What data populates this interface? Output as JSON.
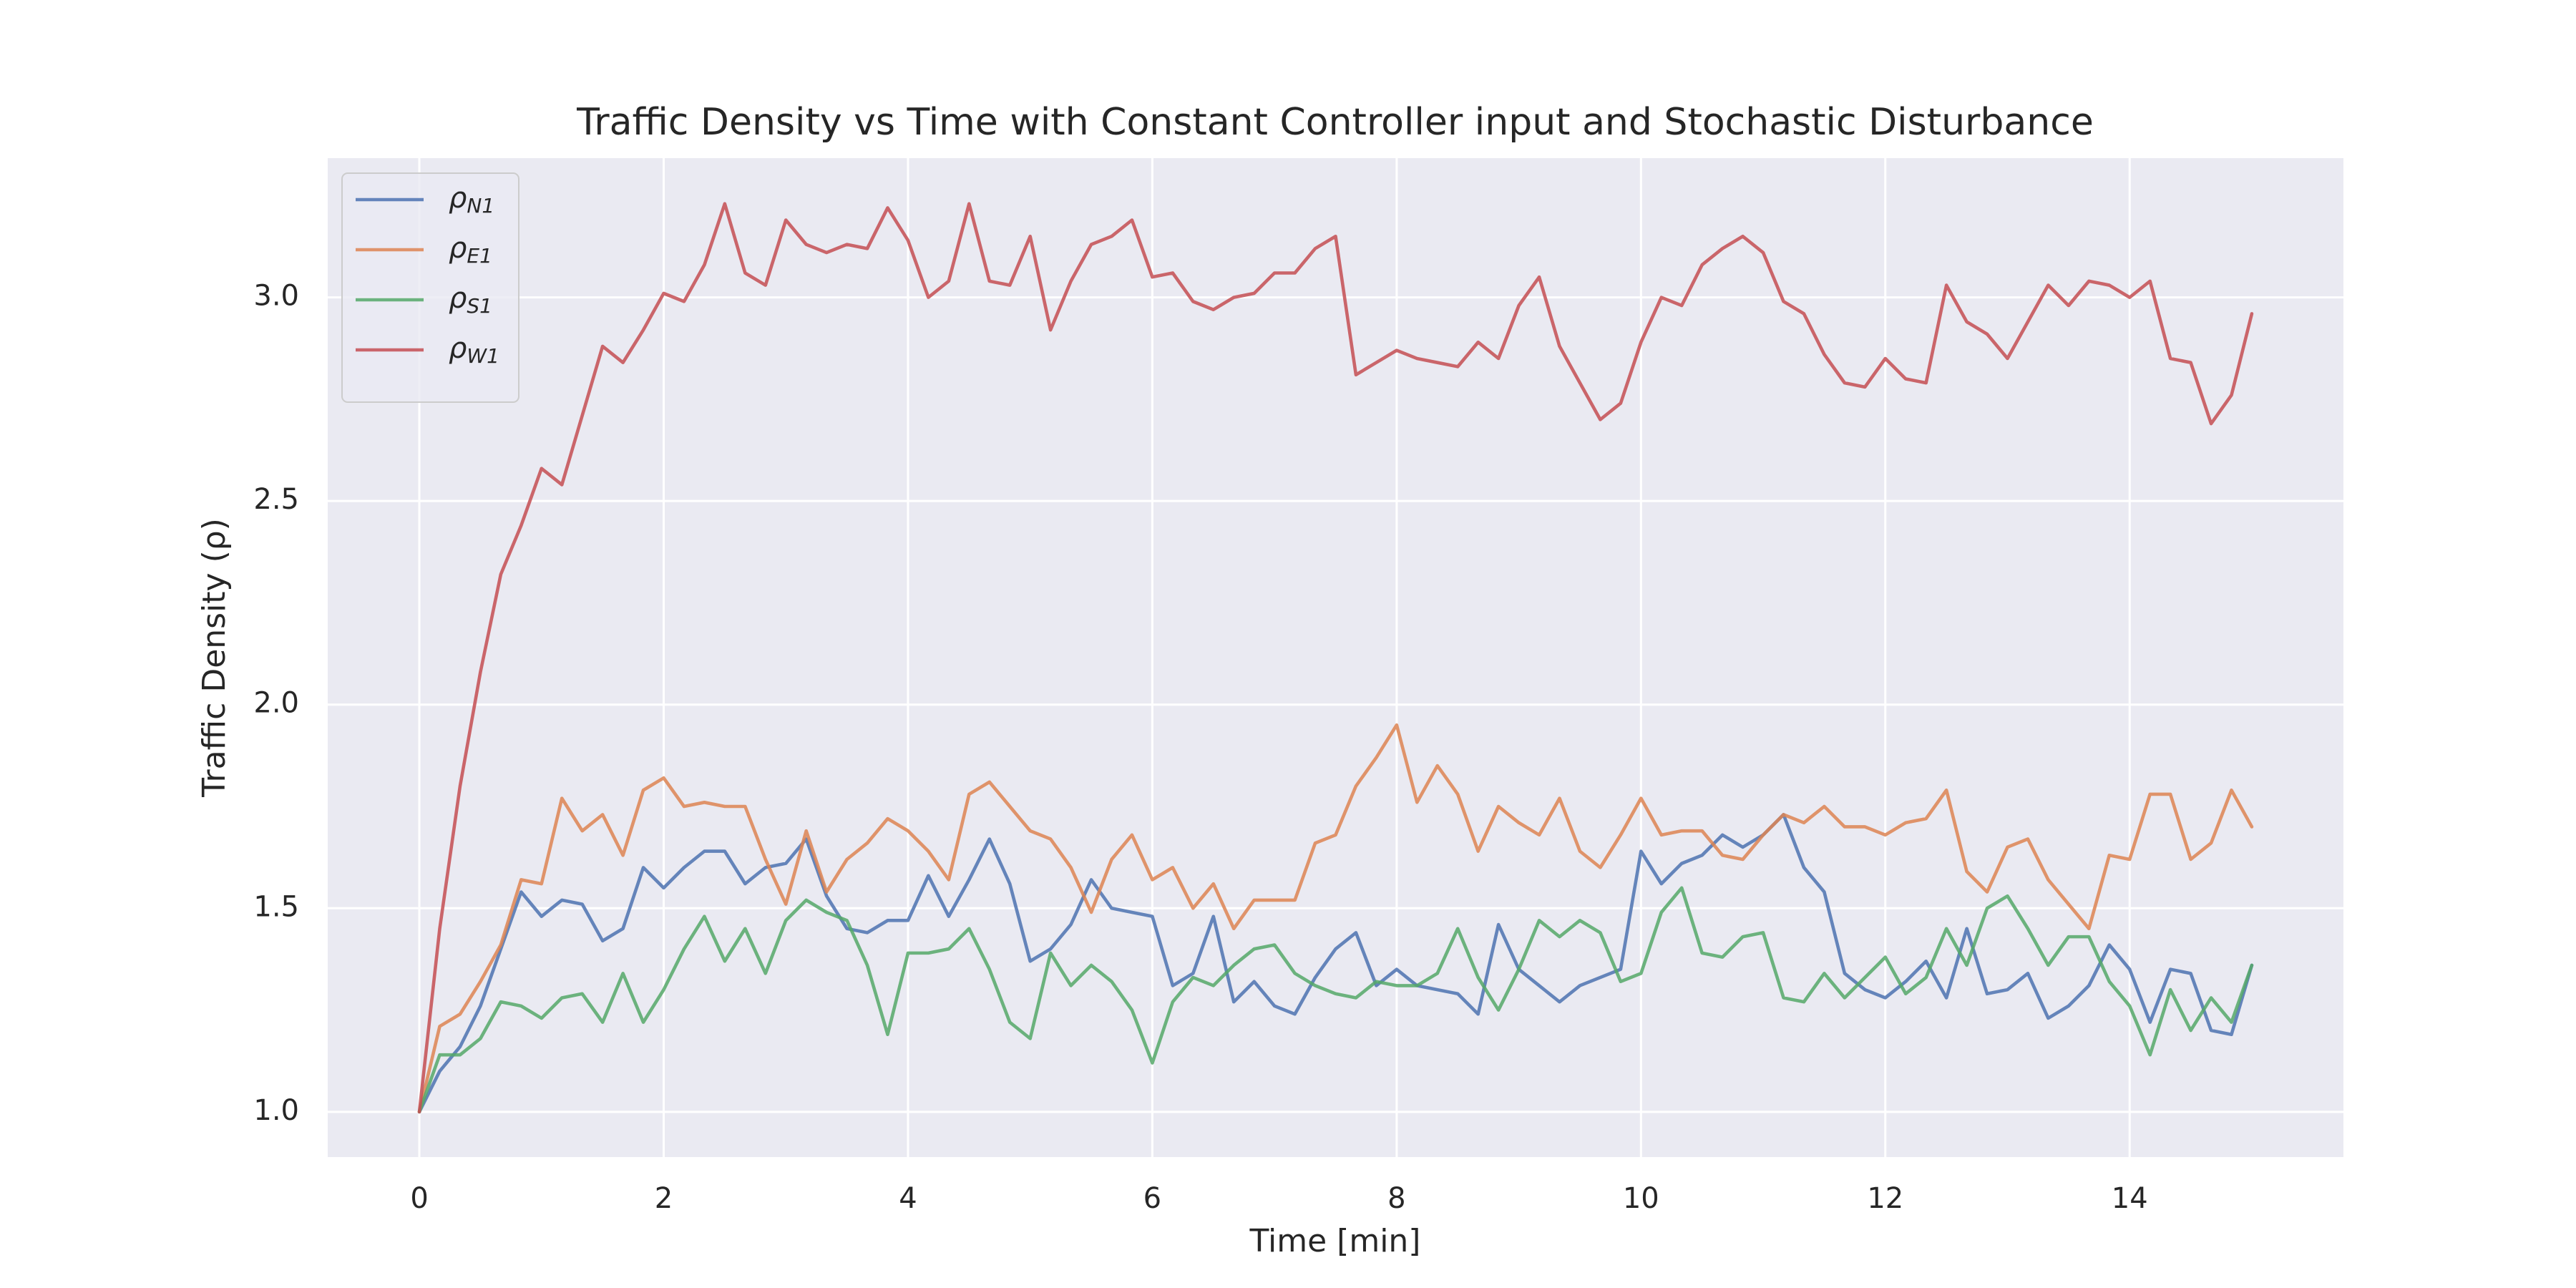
{
  "chart_data": {
    "type": "line",
    "title": "Traffic Density vs Time with Constant Controller input and Stochastic Disturbance",
    "x_label": "Time [min]",
    "y_label": "Traffic Density (ρ)",
    "x": [
      0,
      0.1667,
      0.3333,
      0.5,
      0.6667,
      0.8333,
      1,
      1.1667,
      1.3333,
      1.5,
      1.6667,
      1.8333,
      2,
      2.1667,
      2.3333,
      2.5,
      2.6667,
      2.8333,
      3,
      3.1667,
      3.3333,
      3.5,
      3.6667,
      3.8333,
      4,
      4.1667,
      4.3333,
      4.5,
      4.6667,
      4.8333,
      5,
      5.1667,
      5.3333,
      5.5,
      5.6667,
      5.8333,
      6,
      6.1667,
      6.3333,
      6.5,
      6.6667,
      6.8333,
      7,
      7.1667,
      7.3333,
      7.5,
      7.6667,
      7.8333,
      8,
      8.1667,
      8.3333,
      8.5,
      8.6667,
      8.8333,
      9,
      9.1667,
      9.3333,
      9.5,
      9.6667,
      9.8333,
      10,
      10.1667,
      10.3333,
      10.5,
      10.6667,
      10.8333,
      11,
      11.1667,
      11.3333,
      11.5,
      11.6667,
      11.8333,
      12,
      12.1667,
      12.3333,
      12.5,
      12.6667,
      12.8333,
      13,
      13.1667,
      13.3333,
      13.5,
      13.6667,
      13.8333,
      14,
      14.1667,
      14.3333,
      14.5,
      14.6667,
      14.8333,
      15
    ],
    "series": [
      {
        "name": "ρN1",
        "color": "#4c72b0",
        "values": [
          1.0,
          1.1,
          1.16,
          1.26,
          1.4,
          1.54,
          1.48,
          1.52,
          1.51,
          1.42,
          1.45,
          1.6,
          1.55,
          1.6,
          1.64,
          1.64,
          1.56,
          1.6,
          1.61,
          1.67,
          1.53,
          1.45,
          1.44,
          1.47,
          1.47,
          1.58,
          1.48,
          1.57,
          1.67,
          1.56,
          1.37,
          1.4,
          1.46,
          1.57,
          1.5,
          1.49,
          1.48,
          1.31,
          1.34,
          1.48,
          1.27,
          1.32,
          1.26,
          1.24,
          1.33,
          1.4,
          1.44,
          1.31,
          1.35,
          1.31,
          1.3,
          1.29,
          1.24,
          1.46,
          1.35,
          1.31,
          1.27,
          1.31,
          1.33,
          1.35,
          1.64,
          1.56,
          1.61,
          1.63,
          1.68,
          1.65,
          1.68,
          1.73,
          1.6,
          1.54,
          1.34,
          1.3,
          1.28,
          1.32,
          1.37,
          1.28,
          1.45,
          1.29,
          1.3,
          1.34,
          1.23,
          1.26,
          1.31,
          1.41,
          1.35,
          1.22,
          1.35,
          1.34,
          1.2,
          1.19,
          1.36
        ]
      },
      {
        "name": "ρE1",
        "color": "#dd8452",
        "values": [
          1.0,
          1.21,
          1.24,
          1.32,
          1.41,
          1.57,
          1.56,
          1.77,
          1.69,
          1.73,
          1.63,
          1.79,
          1.82,
          1.75,
          1.76,
          1.75,
          1.75,
          1.62,
          1.51,
          1.69,
          1.54,
          1.62,
          1.66,
          1.72,
          1.69,
          1.64,
          1.57,
          1.78,
          1.81,
          1.75,
          1.69,
          1.67,
          1.6,
          1.49,
          1.62,
          1.68,
          1.57,
          1.6,
          1.5,
          1.56,
          1.45,
          1.52,
          1.52,
          1.52,
          1.66,
          1.68,
          1.8,
          1.87,
          1.95,
          1.76,
          1.85,
          1.78,
          1.64,
          1.75,
          1.71,
          1.68,
          1.77,
          1.64,
          1.6,
          1.68,
          1.77,
          1.68,
          1.69,
          1.69,
          1.63,
          1.62,
          1.68,
          1.73,
          1.71,
          1.75,
          1.7,
          1.7,
          1.68,
          1.71,
          1.72,
          1.79,
          1.59,
          1.54,
          1.65,
          1.67,
          1.57,
          1.51,
          1.45,
          1.63,
          1.62,
          1.78,
          1.78,
          1.62,
          1.66,
          1.79,
          1.7
        ]
      },
      {
        "name": "ρS1",
        "color": "#55a868",
        "values": [
          1.0,
          1.14,
          1.14,
          1.18,
          1.27,
          1.26,
          1.23,
          1.28,
          1.29,
          1.22,
          1.34,
          1.22,
          1.3,
          1.4,
          1.48,
          1.37,
          1.45,
          1.34,
          1.47,
          1.52,
          1.49,
          1.47,
          1.36,
          1.19,
          1.39,
          1.39,
          1.4,
          1.45,
          1.35,
          1.22,
          1.18,
          1.39,
          1.31,
          1.36,
          1.32,
          1.25,
          1.12,
          1.27,
          1.33,
          1.31,
          1.36,
          1.4,
          1.41,
          1.34,
          1.31,
          1.29,
          1.28,
          1.32,
          1.31,
          1.31,
          1.34,
          1.45,
          1.33,
          1.25,
          1.35,
          1.47,
          1.43,
          1.47,
          1.44,
          1.32,
          1.34,
          1.49,
          1.55,
          1.39,
          1.38,
          1.43,
          1.44,
          1.28,
          1.27,
          1.34,
          1.28,
          1.33,
          1.38,
          1.29,
          1.33,
          1.45,
          1.36,
          1.5,
          1.53,
          1.45,
          1.36,
          1.43,
          1.43,
          1.32,
          1.26,
          1.14,
          1.3,
          1.2,
          1.28,
          1.22,
          1.36
        ]
      },
      {
        "name": "ρW1",
        "color": "#c44e52",
        "values": [
          1.0,
          1.45,
          1.8,
          2.08,
          2.32,
          2.44,
          2.58,
          2.54,
          2.71,
          2.88,
          2.84,
          2.92,
          3.01,
          2.99,
          3.08,
          3.23,
          3.06,
          3.03,
          3.19,
          3.13,
          3.11,
          3.13,
          3.12,
          3.22,
          3.14,
          3.0,
          3.04,
          3.23,
          3.04,
          3.03,
          3.15,
          2.92,
          3.04,
          3.13,
          3.15,
          3.19,
          3.05,
          3.06,
          2.99,
          2.97,
          3.0,
          3.01,
          3.06,
          3.06,
          3.12,
          3.15,
          2.81,
          2.84,
          2.87,
          2.85,
          2.84,
          2.83,
          2.89,
          2.85,
          2.98,
          3.05,
          2.88,
          2.79,
          2.7,
          2.74,
          2.89,
          3.0,
          2.98,
          3.08,
          3.12,
          3.15,
          3.11,
          2.99,
          2.96,
          2.86,
          2.79,
          2.78,
          2.85,
          2.8,
          2.79,
          3.03,
          2.94,
          2.91,
          2.85,
          2.94,
          3.03,
          2.98,
          3.04,
          3.03,
          3.0,
          3.04,
          2.85,
          2.84,
          2.69,
          2.76,
          2.96
        ]
      }
    ],
    "xlim": [
      -0.75,
      15.75
    ],
    "ylim": [
      0.889,
      3.342
    ],
    "xticks": [
      0,
      2,
      4,
      6,
      8,
      10,
      12,
      14
    ],
    "yticks": [
      {
        "value": 1,
        "label": "1.0"
      },
      1.5,
      {
        "value": 2,
        "label": "2.0"
      },
      2.5,
      {
        "value": 3,
        "label": "3.0"
      }
    ],
    "grid": true,
    "legend": "upper-left"
  }
}
